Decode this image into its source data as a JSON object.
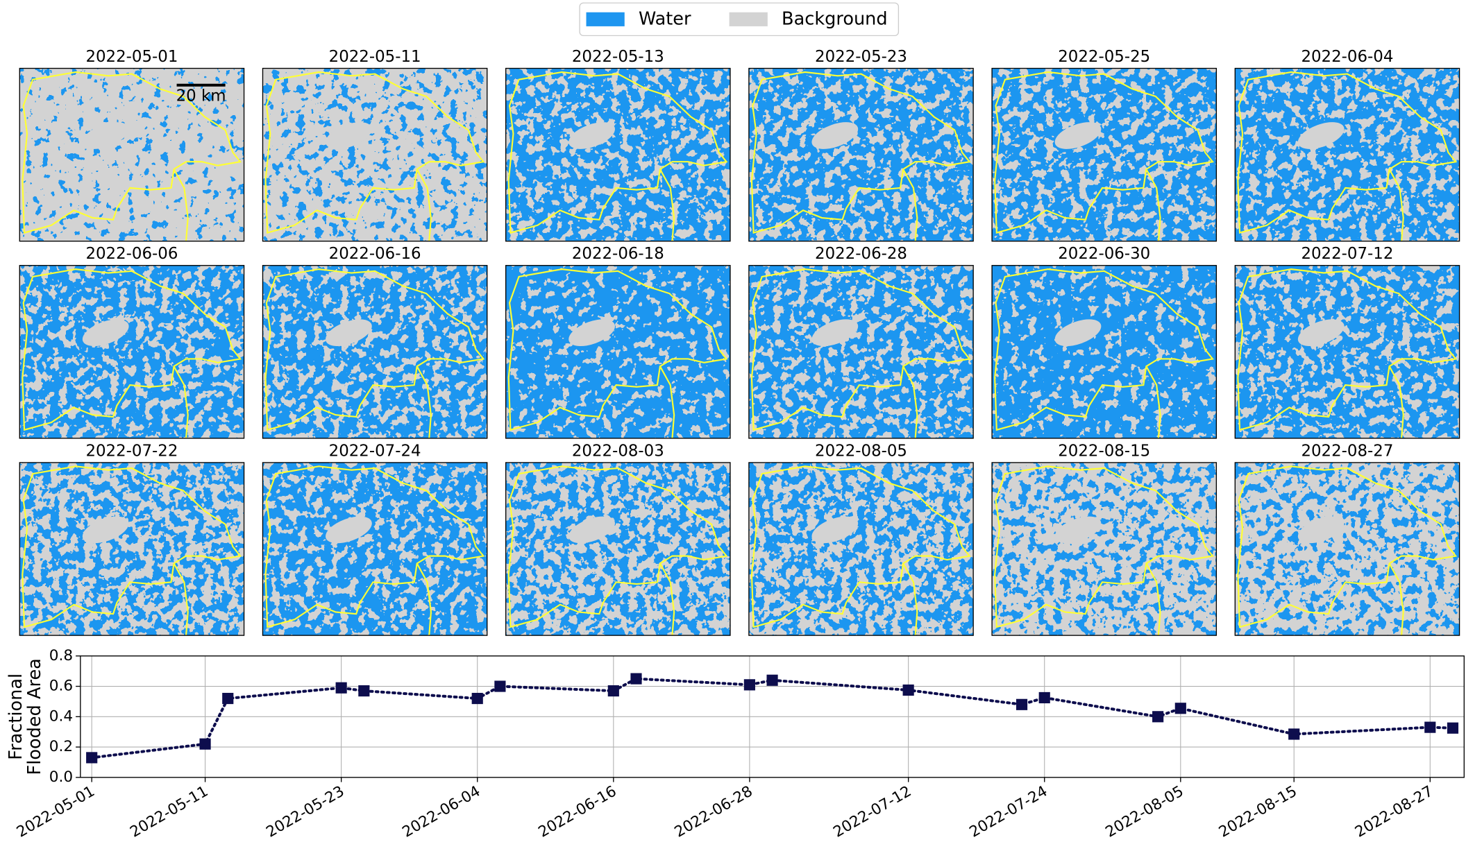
{
  "legend": [
    {
      "label": "Water",
      "color": "#1e96f0"
    },
    {
      "label": "Background",
      "color": "#d3d3d3"
    }
  ],
  "scale_bar": "20 km",
  "panels": [
    "2022-05-01",
    "2022-05-11",
    "2022-05-13",
    "2022-05-23",
    "2022-05-25",
    "2022-06-04",
    "2022-06-06",
    "2022-06-16",
    "2022-06-18",
    "2022-06-28",
    "2022-06-30",
    "2022-07-12",
    "2022-07-22",
    "2022-07-24",
    "2022-08-03",
    "2022-08-05",
    "2022-08-15",
    "2022-08-27"
  ],
  "chart_data": {
    "type": "line",
    "ylabel": [
      "Fractional",
      "Flooded Area"
    ],
    "x": [
      "2022-05-01",
      "2022-05-11",
      "2022-05-13",
      "2022-05-23",
      "2022-05-25",
      "2022-06-04",
      "2022-06-06",
      "2022-06-16",
      "2022-06-18",
      "2022-06-28",
      "2022-06-30",
      "2022-07-12",
      "2022-07-22",
      "2022-07-24",
      "2022-08-03",
      "2022-08-05",
      "2022-08-15",
      "2022-08-27",
      "2022-08-29"
    ],
    "values": [
      0.13,
      0.22,
      0.52,
      0.59,
      0.57,
      0.52,
      0.6,
      0.57,
      0.65,
      0.61,
      0.64,
      0.575,
      0.48,
      0.525,
      0.4,
      0.455,
      0.285,
      0.33,
      0.325
    ],
    "color": "#0d0d4d",
    "xlim": [
      "2022-04-30",
      "2022-08-30"
    ],
    "xticks": [
      "2022-05-01",
      "2022-05-11",
      "2022-05-23",
      "2022-06-04",
      "2022-06-16",
      "2022-06-28",
      "2022-07-12",
      "2022-07-24",
      "2022-08-05",
      "2022-08-15",
      "2022-08-27"
    ],
    "ylim": [
      0,
      0.8
    ],
    "yticks": [
      {
        "value": 0,
        "label": "0.0"
      },
      0.2,
      0.4,
      0.6,
      0.8
    ],
    "grid": true
  }
}
